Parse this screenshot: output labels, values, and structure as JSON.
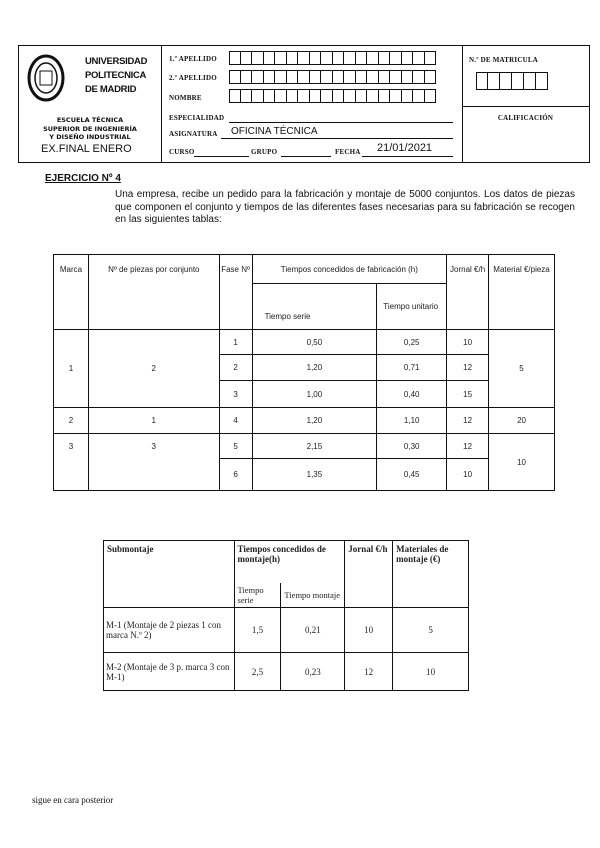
{
  "header": {
    "university": [
      "UNIVERSIDAD",
      "POLITECNICA",
      "DE MADRID"
    ],
    "school": [
      "ESCUELA TÉCNICA",
      "SUPERIOR DE INGENIERÍA",
      "Y DISEÑO INDUSTRIAL"
    ],
    "exam": "EX.FINAL ENERO",
    "apellido1": "1.º APELLIDO",
    "apellido2": "2.º APELLIDO",
    "nombre": "NOMBRE",
    "especialidad": "ESPECIALIDAD",
    "asignatura": "ASIGNATURA",
    "asignatura_value": "OFICINA TÉCNICA",
    "curso": "CURSO",
    "grupo": "GRUPO",
    "fecha": "FECHA",
    "fecha_value": "21/01/2021",
    "matricula": "N.º DE MATRICULA",
    "calificacion": "CALIFICACIÓN"
  },
  "exercise": {
    "title": "EJERCICIO Nº 4",
    "text": "Una empresa, recibe un pedido para la fabricación y montaje de 5000 conjuntos. Los datos de piezas que componen el conjunto y tiempos de las diferentes fases necesarias para su fabricación se recogen en las siguientes tablas:"
  },
  "table1": {
    "headers": {
      "marca": "Marca",
      "piezas": "Nº de piezas por conjunto",
      "fase": "Fase Nº",
      "tiempos": "Tiempos concedidos de fabricación (h)",
      "serie": "Tiempo serie",
      "unitario": "Tiempo unitario",
      "jornal": "Jornal €/h",
      "material": "Material €/pieza"
    },
    "groups": [
      {
        "marca": "1",
        "piezas": "2",
        "material": "5"
      },
      {
        "marca": "2",
        "piezas": "1",
        "material": "20"
      },
      {
        "marca": "3",
        "piezas": "3",
        "material": "10"
      }
    ],
    "phases": [
      {
        "fase": "1",
        "serie": "0,50",
        "unitario": "0,25",
        "jornal": "10"
      },
      {
        "fase": "2",
        "serie": "1,20",
        "unitario": "0,71",
        "jornal": "12"
      },
      {
        "fase": "3",
        "serie": "1,00",
        "unitario": "0,40",
        "jornal": "15"
      },
      {
        "fase": "4",
        "serie": "1,20",
        "unitario": "1,10",
        "jornal": "12"
      },
      {
        "fase": "5",
        "serie": "2,15",
        "unitario": "0,30",
        "jornal": "12"
      },
      {
        "fase": "6",
        "serie": "1,35",
        "unitario": "0,45",
        "jornal": "10"
      }
    ]
  },
  "table2": {
    "headers": {
      "submontaje": "Submontaje",
      "tiempos": "Tiempos concedidos de montaje(h)",
      "serie": "Tiempo serie",
      "montaje": "Tiempo montaje",
      "jornal": "Jornal €/h",
      "materiales": "Materiales de montaje (€)"
    },
    "rows": [
      {
        "name": "M-1 (Montaje de 2 piezas 1 con marca N.º 2)",
        "serie": "1,5",
        "montaje": "0,21",
        "jornal": "10",
        "materiales": "5"
      },
      {
        "name": "M-2 (Montaje de 3 p. marca 3 con M-1)",
        "serie": "2,5",
        "montaje": "0,23",
        "jornal": "12",
        "materiales": "10"
      }
    ]
  },
  "footer": "sigue en cara posterior"
}
